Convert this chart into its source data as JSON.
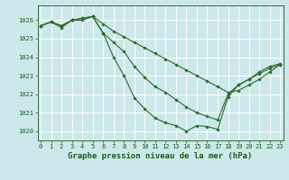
{
  "title": "Graphe pression niveau de la mer (hPa)",
  "bg_color": "#cce8ea",
  "grid_color": "#ffffff",
  "line_color": "#2d6a2d",
  "marker_color": "#2d6a2d",
  "label_color": "#1a5c1a",
  "series": [
    [
      1025.7,
      1025.9,
      1025.7,
      1026.0,
      1026.1,
      1026.2,
      1025.8,
      1025.4,
      1025.1,
      1024.8,
      1024.5,
      1024.2,
      1023.9,
      1023.6,
      1023.3,
      1023.0,
      1022.7,
      1022.4,
      1022.1,
      1022.2,
      1022.5,
      1022.8,
      1023.2,
      1023.6
    ],
    [
      1025.7,
      1025.9,
      1025.7,
      1026.0,
      1026.1,
      1026.2,
      1025.3,
      1024.8,
      1024.3,
      1023.5,
      1022.9,
      1022.4,
      1022.1,
      1021.7,
      1021.3,
      1021.0,
      1020.8,
      1020.6,
      1022.0,
      1022.5,
      1022.8,
      1023.1,
      1023.4,
      1023.6
    ],
    [
      1025.7,
      1025.9,
      1025.6,
      1026.0,
      1026.0,
      1026.2,
      1025.3,
      1024.0,
      1023.0,
      1021.8,
      1021.2,
      1020.7,
      1020.45,
      1020.3,
      1020.0,
      1020.3,
      1020.25,
      1020.1,
      1021.85,
      1022.5,
      1022.8,
      1023.2,
      1023.5,
      1023.65
    ]
  ],
  "ylim": [
    1019.5,
    1026.8
  ],
  "yticks": [
    1020,
    1021,
    1022,
    1023,
    1024,
    1025,
    1026
  ],
  "xticks": [
    0,
    1,
    2,
    3,
    4,
    5,
    6,
    7,
    8,
    9,
    10,
    11,
    12,
    13,
    14,
    15,
    16,
    17,
    18,
    19,
    20,
    21,
    22,
    23
  ],
  "tick_fontsize": 5.0,
  "label_fontsize": 6.5
}
